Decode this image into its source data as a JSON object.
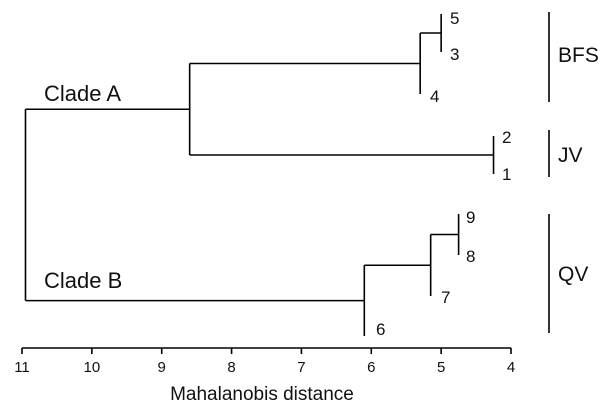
{
  "chart_data": {
    "type": "dendrogram",
    "xlabel": "Mahalanobis distance",
    "xlim": [
      11,
      4
    ],
    "xticks": [
      11,
      10,
      9,
      8,
      7,
      6,
      5,
      4
    ],
    "merges": [
      {
        "id": "m53",
        "children": [
          "5",
          "3"
        ],
        "height": 5.0
      },
      {
        "id": "mBFS",
        "children": [
          "m53",
          "4"
        ],
        "height": 5.3
      },
      {
        "id": "mJV",
        "children": [
          "2",
          "1"
        ],
        "height": 4.25
      },
      {
        "id": "mA",
        "children": [
          "mBFS",
          "mJV"
        ],
        "height": 8.6,
        "label": "Clade A"
      },
      {
        "id": "m98",
        "children": [
          "9",
          "8"
        ],
        "height": 4.75
      },
      {
        "id": "m987",
        "children": [
          "m98",
          "7"
        ],
        "height": 5.15
      },
      {
        "id": "mB",
        "children": [
          "m987",
          "6"
        ],
        "height": 6.1,
        "label": "Clade B"
      },
      {
        "id": "root",
        "children": [
          "mA",
          "mB"
        ],
        "height": 10.95
      }
    ],
    "leaves": [
      "5",
      "3",
      "4",
      "2",
      "1",
      "9",
      "8",
      "7",
      "6"
    ],
    "groups": [
      {
        "name": "BFS",
        "members": [
          "5",
          "3",
          "4"
        ]
      },
      {
        "name": "JV",
        "members": [
          "2",
          "1"
        ]
      },
      {
        "name": "QV",
        "members": [
          "9",
          "8",
          "7",
          "6"
        ]
      }
    ]
  }
}
